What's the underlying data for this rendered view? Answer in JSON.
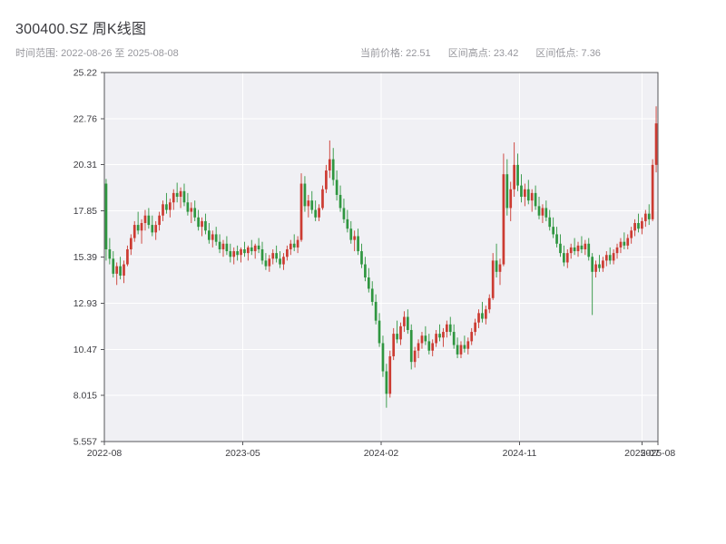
{
  "header": {
    "title": "300400.SZ 周K线图",
    "time_range": "时间范围: 2022-08-26 至 2025-08-08",
    "current_price": "当前价格: 22.51",
    "range_high": "区间高点: 23.42",
    "range_low": "区间低点: 7.36"
  },
  "chart_data": {
    "type": "candlestick",
    "title": "300400.SZ 周K线图",
    "frequency": "weekly",
    "date_start": "2022-08-26",
    "date_end": "2025-08-08",
    "current_price": 22.51,
    "range_high": 23.42,
    "range_low": 7.36,
    "ylim": [
      5.557,
      25.22
    ],
    "y_ticks": [
      "25.22",
      "22.76",
      "20.31",
      "17.85",
      "15.39",
      "12.93",
      "10.47",
      "8.015",
      "5.557"
    ],
    "x_ticks": [
      {
        "label": "2022-08",
        "pos": 0
      },
      {
        "label": "2023-05",
        "pos": 39
      },
      {
        "label": "2024-02",
        "pos": 78
      },
      {
        "label": "2024-11",
        "pos": 117
      },
      {
        "label": "2025-07",
        "pos": 151.5
      },
      {
        "label": "2025-08",
        "pos": 156
      }
    ],
    "legend": "none",
    "grid": true,
    "colors": {
      "up": "#cc3b32",
      "down": "#2f9640",
      "plot_bg": "#f0f0f4",
      "grid": "#ffffff",
      "border": "#55565a",
      "axis_text": "#3d3d42"
    },
    "candles": [
      [
        19.3,
        19.55,
        15.2,
        15.8
      ],
      [
        15.8,
        16.4,
        15.0,
        15.3
      ],
      [
        15.3,
        15.7,
        14.3,
        14.5
      ],
      [
        14.5,
        15.1,
        13.9,
        14.9
      ],
      [
        14.9,
        15.4,
        14.2,
        14.4
      ],
      [
        14.4,
        15.2,
        14.0,
        15.0
      ],
      [
        15.0,
        16.0,
        14.9,
        15.8
      ],
      [
        15.8,
        16.6,
        15.5,
        16.4
      ],
      [
        16.4,
        17.3,
        16.2,
        17.1
      ],
      [
        17.1,
        17.8,
        16.6,
        16.8
      ],
      [
        16.8,
        17.4,
        16.1,
        17.2
      ],
      [
        17.2,
        17.9,
        16.8,
        17.6
      ],
      [
        17.6,
        18.0,
        16.9,
        17.1
      ],
      [
        17.1,
        17.6,
        16.5,
        16.7
      ],
      [
        16.7,
        17.3,
        16.3,
        17.1
      ],
      [
        17.1,
        17.8,
        16.8,
        17.6
      ],
      [
        17.6,
        18.4,
        17.3,
        18.2
      ],
      [
        18.2,
        18.8,
        17.7,
        17.9
      ],
      [
        17.9,
        18.5,
        17.5,
        18.3
      ],
      [
        18.3,
        19.0,
        17.9,
        18.8
      ],
      [
        18.8,
        19.35,
        18.3,
        18.6
      ],
      [
        18.6,
        19.1,
        18.0,
        18.9
      ],
      [
        18.9,
        19.3,
        18.1,
        18.3
      ],
      [
        18.3,
        18.8,
        17.6,
        17.8
      ],
      [
        17.8,
        18.3,
        17.2,
        18.0
      ],
      [
        18.0,
        18.4,
        17.3,
        17.5
      ],
      [
        17.5,
        17.9,
        16.8,
        17.0
      ],
      [
        17.0,
        17.5,
        16.5,
        17.3
      ],
      [
        17.3,
        17.7,
        16.6,
        16.8
      ],
      [
        16.8,
        17.2,
        16.1,
        16.3
      ],
      [
        16.3,
        16.8,
        15.9,
        16.6
      ],
      [
        16.6,
        17.0,
        16.0,
        16.2
      ],
      [
        16.2,
        16.6,
        15.6,
        15.8
      ],
      [
        15.8,
        16.3,
        15.4,
        16.1
      ],
      [
        16.1,
        16.5,
        15.5,
        15.7
      ],
      [
        15.7,
        16.1,
        15.1,
        15.4
      ],
      [
        15.4,
        15.9,
        15.0,
        15.7
      ],
      [
        15.7,
        16.0,
        15.2,
        15.5
      ],
      [
        15.5,
        15.9,
        15.1,
        15.8
      ],
      [
        15.8,
        16.2,
        15.4,
        15.6
      ],
      [
        15.6,
        16.0,
        15.2,
        15.9
      ],
      [
        15.9,
        16.3,
        15.5,
        15.7
      ],
      [
        15.7,
        16.1,
        15.3,
        16.0
      ],
      [
        16.0,
        16.4,
        15.6,
        15.8
      ],
      [
        15.8,
        16.2,
        15.0,
        15.2
      ],
      [
        15.2,
        15.6,
        14.7,
        14.9
      ],
      [
        14.9,
        15.5,
        14.6,
        15.3
      ],
      [
        15.3,
        15.8,
        15.0,
        15.6
      ],
      [
        15.6,
        16.0,
        15.1,
        15.3
      ],
      [
        15.3,
        15.7,
        14.8,
        15.0
      ],
      [
        15.0,
        15.6,
        14.7,
        15.4
      ],
      [
        15.4,
        16.0,
        15.2,
        15.8
      ],
      [
        15.8,
        16.3,
        15.5,
        16.1
      ],
      [
        16.1,
        16.6,
        15.7,
        15.9
      ],
      [
        15.9,
        16.5,
        15.6,
        16.3
      ],
      [
        16.3,
        19.85,
        16.2,
        19.3
      ],
      [
        19.3,
        19.7,
        17.8,
        18.1
      ],
      [
        18.1,
        18.7,
        17.5,
        18.4
      ],
      [
        18.4,
        18.9,
        17.7,
        17.9
      ],
      [
        17.9,
        18.4,
        17.3,
        17.5
      ],
      [
        17.5,
        18.2,
        17.3,
        18.0
      ],
      [
        18.0,
        19.2,
        17.9,
        19.0
      ],
      [
        19.0,
        20.3,
        18.8,
        20.0
      ],
      [
        20.0,
        21.6,
        19.6,
        20.6
      ],
      [
        20.6,
        21.2,
        19.2,
        19.5
      ],
      [
        19.5,
        20.0,
        18.4,
        18.7
      ],
      [
        18.7,
        19.2,
        17.8,
        18.0
      ],
      [
        18.0,
        18.5,
        17.2,
        17.4
      ],
      [
        17.4,
        17.9,
        16.7,
        16.9
      ],
      [
        16.9,
        17.3,
        16.1,
        16.3
      ],
      [
        16.3,
        16.8,
        15.7,
        16.5
      ],
      [
        16.5,
        16.9,
        15.5,
        15.7
      ],
      [
        15.7,
        16.1,
        14.8,
        15.0
      ],
      [
        15.0,
        15.4,
        14.1,
        14.3
      ],
      [
        14.3,
        14.8,
        13.5,
        13.7
      ],
      [
        13.7,
        14.1,
        12.8,
        13.0
      ],
      [
        13.0,
        13.4,
        11.8,
        12.0
      ],
      [
        12.0,
        12.4,
        10.6,
        10.8
      ],
      [
        10.8,
        11.2,
        9.0,
        9.3
      ],
      [
        9.3,
        9.7,
        7.36,
        8.1
      ],
      [
        8.1,
        10.4,
        7.9,
        10.1
      ],
      [
        10.1,
        11.6,
        9.9,
        11.3
      ],
      [
        11.3,
        12.0,
        10.8,
        11.0
      ],
      [
        11.0,
        11.9,
        10.7,
        11.7
      ],
      [
        11.7,
        12.5,
        11.4,
        12.2
      ],
      [
        12.2,
        12.6,
        11.3,
        11.5
      ],
      [
        11.5,
        11.8,
        9.4,
        9.8
      ],
      [
        9.8,
        10.6,
        9.5,
        10.4
      ],
      [
        10.4,
        11.0,
        10.0,
        10.8
      ],
      [
        10.8,
        11.4,
        10.5,
        11.2
      ],
      [
        11.2,
        11.7,
        10.7,
        10.9
      ],
      [
        10.9,
        11.3,
        10.2,
        10.4
      ],
      [
        10.4,
        11.0,
        10.1,
        10.8
      ],
      [
        10.8,
        11.5,
        10.6,
        11.3
      ],
      [
        11.3,
        11.8,
        10.9,
        11.1
      ],
      [
        11.1,
        11.6,
        10.6,
        11.4
      ],
      [
        11.4,
        12.0,
        11.1,
        11.8
      ],
      [
        11.8,
        12.2,
        11.2,
        11.4
      ],
      [
        11.4,
        11.8,
        10.5,
        10.7
      ],
      [
        10.7,
        11.1,
        10.0,
        10.2
      ],
      [
        10.2,
        10.9,
        10.0,
        10.7
      ],
      [
        10.7,
        11.2,
        10.3,
        10.5
      ],
      [
        10.5,
        11.1,
        10.2,
        10.9
      ],
      [
        10.9,
        11.6,
        10.7,
        11.4
      ],
      [
        11.4,
        12.1,
        11.2,
        11.9
      ],
      [
        11.9,
        12.6,
        11.6,
        12.4
      ],
      [
        12.4,
        13.0,
        11.9,
        12.1
      ],
      [
        12.1,
        12.8,
        11.8,
        12.6
      ],
      [
        12.6,
        13.4,
        12.4,
        13.2
      ],
      [
        13.2,
        15.6,
        13.1,
        15.2
      ],
      [
        15.2,
        16.1,
        14.3,
        14.6
      ],
      [
        14.6,
        15.3,
        13.9,
        15.0
      ],
      [
        15.0,
        20.9,
        14.9,
        19.8
      ],
      [
        19.8,
        20.6,
        17.6,
        18.0
      ],
      [
        18.0,
        19.4,
        17.3,
        19.0
      ],
      [
        19.0,
        21.5,
        18.6,
        20.3
      ],
      [
        20.3,
        20.9,
        18.9,
        19.2
      ],
      [
        19.2,
        19.8,
        18.3,
        18.6
      ],
      [
        18.6,
        19.3,
        18.1,
        19.0
      ],
      [
        19.0,
        19.5,
        18.2,
        18.4
      ],
      [
        18.4,
        19.0,
        17.8,
        18.8
      ],
      [
        18.8,
        19.2,
        17.9,
        18.1
      ],
      [
        18.1,
        18.6,
        17.4,
        17.6
      ],
      [
        17.6,
        18.2,
        17.2,
        18.0
      ],
      [
        18.0,
        18.4,
        17.3,
        17.5
      ],
      [
        17.5,
        17.9,
        16.8,
        17.0
      ],
      [
        17.0,
        17.5,
        16.4,
        16.6
      ],
      [
        16.6,
        17.0,
        15.9,
        16.1
      ],
      [
        16.1,
        16.6,
        15.4,
        15.6
      ],
      [
        15.6,
        16.0,
        14.9,
        15.1
      ],
      [
        15.1,
        15.8,
        14.8,
        15.6
      ],
      [
        15.6,
        16.1,
        15.3,
        15.9
      ],
      [
        15.9,
        16.4,
        15.5,
        15.7
      ],
      [
        15.7,
        16.2,
        15.4,
        16.0
      ],
      [
        16.0,
        16.5,
        15.6,
        15.8
      ],
      [
        15.8,
        16.3,
        15.5,
        16.1
      ],
      [
        16.1,
        16.4,
        15.2,
        15.4
      ],
      [
        15.4,
        15.6,
        12.3,
        14.6
      ],
      [
        14.6,
        15.2,
        14.3,
        15.0
      ],
      [
        15.0,
        15.5,
        14.6,
        14.8
      ],
      [
        14.8,
        15.4,
        14.6,
        15.2
      ],
      [
        15.2,
        15.7,
        14.9,
        15.5
      ],
      [
        15.5,
        15.9,
        15.0,
        15.2
      ],
      [
        15.2,
        15.8,
        15.0,
        15.6
      ],
      [
        15.6,
        16.1,
        15.3,
        15.9
      ],
      [
        15.9,
        16.4,
        15.6,
        16.2
      ],
      [
        16.2,
        16.7,
        15.8,
        16.0
      ],
      [
        16.0,
        16.6,
        15.8,
        16.4
      ],
      [
        16.4,
        17.0,
        16.1,
        16.8
      ],
      [
        16.8,
        17.4,
        16.5,
        17.2
      ],
      [
        17.2,
        17.7,
        16.7,
        16.9
      ],
      [
        16.9,
        17.5,
        16.6,
        17.3
      ],
      [
        17.3,
        17.9,
        17.0,
        17.7
      ],
      [
        17.7,
        18.2,
        17.1,
        17.4
      ],
      [
        17.4,
        20.6,
        17.3,
        20.3
      ],
      [
        20.3,
        23.42,
        19.9,
        22.51
      ]
    ]
  }
}
